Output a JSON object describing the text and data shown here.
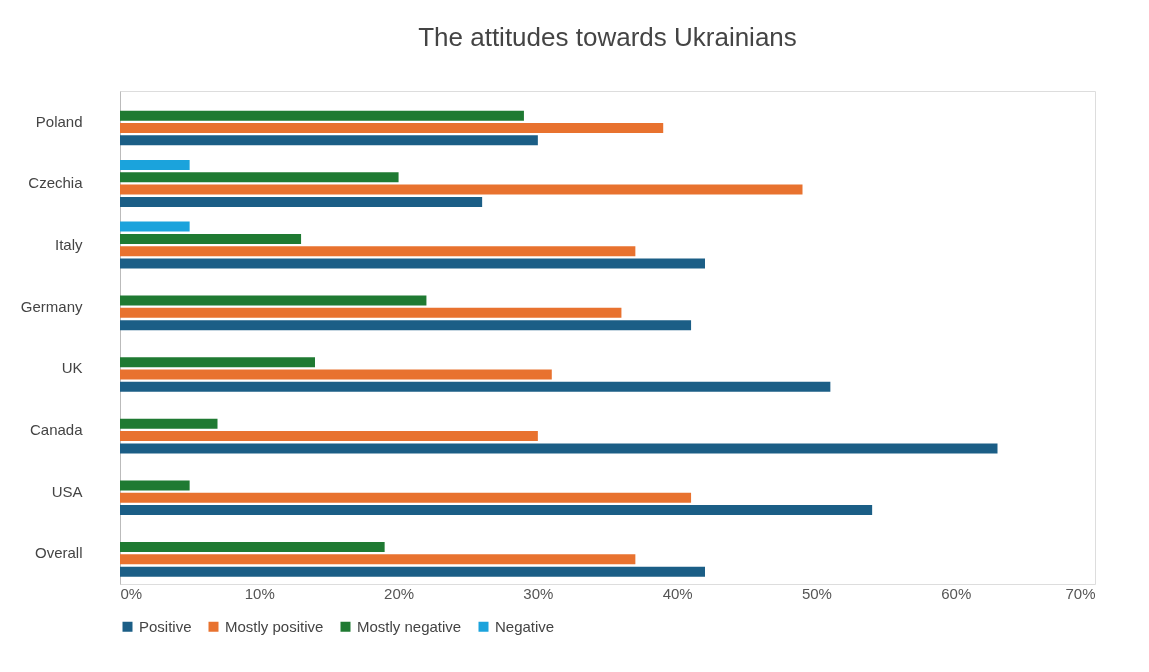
{
  "chart_data": {
    "type": "bar",
    "orientation": "horizontal",
    "title": "The attitudes towards Ukrainians",
    "categories": [
      "Poland",
      "Czechia",
      "Italy",
      "Germany",
      "UK",
      "Canada",
      "USA",
      "Overall"
    ],
    "series": [
      {
        "name": "Positive",
        "color": "#1b5e86",
        "values": [
          30,
          26,
          42,
          41,
          51,
          63,
          54,
          42
        ]
      },
      {
        "name": "Mostly positive",
        "color": "#e8722f",
        "values": [
          39,
          49,
          37,
          36,
          31,
          30,
          41,
          37
        ]
      },
      {
        "name": "Mostly negative",
        "color": "#1f7a32",
        "values": [
          29,
          20,
          13,
          22,
          14,
          7,
          5,
          19
        ]
      },
      {
        "name": "Negative",
        "color": "#1ba3dc",
        "values": [
          null,
          5,
          5,
          null,
          null,
          null,
          null,
          null
        ]
      }
    ],
    "xlim": [
      0,
      70
    ],
    "xticks": [
      {
        "value": 0,
        "label": "0%"
      },
      {
        "value": 10,
        "label": "10%"
      },
      {
        "value": 20,
        "label": "20%"
      },
      {
        "value": 30,
        "label": "30%"
      },
      {
        "value": 40,
        "label": "40%"
      },
      {
        "value": 50,
        "label": "50%"
      },
      {
        "value": 60,
        "label": "60%"
      },
      {
        "value": 70,
        "label": "70%"
      }
    ],
    "grid": false,
    "legend": "bottom"
  }
}
